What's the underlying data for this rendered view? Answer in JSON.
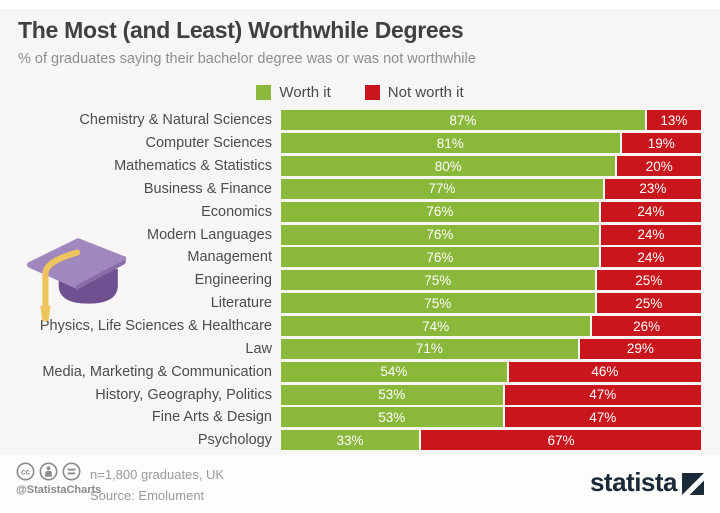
{
  "header": {
    "title": "The Most (and Least) Worthwhile Degrees",
    "subtitle": "% of graduates saying their bachelor degree was or was not worthwhile"
  },
  "chart_data": {
    "type": "bar",
    "orientation": "horizontal",
    "stacked": true,
    "value_suffix": "%",
    "xlim": [
      0,
      100
    ],
    "legend_position": "top-center",
    "categories": [
      "Chemistry & Natural Sciences",
      "Computer Sciences",
      "Mathematics & Statistics",
      "Business & Finance",
      "Economics",
      "Modern Languages",
      "Management",
      "Engineering",
      "Literature",
      "Physics, Life Sciences & Healthcare",
      "Law",
      "Media, Marketing & Communication",
      "History, Geography, Politics",
      "Fine Arts & Design",
      "Psychology"
    ],
    "series": [
      {
        "name": "Worth it",
        "color": "#8ab83a",
        "values": [
          87,
          81,
          80,
          77,
          76,
          76,
          76,
          75,
          75,
          74,
          71,
          54,
          53,
          53,
          33
        ]
      },
      {
        "name": "Not worth it",
        "color": "#c9161c",
        "values": [
          13,
          19,
          20,
          23,
          24,
          24,
          24,
          25,
          25,
          26,
          29,
          46,
          47,
          47,
          67
        ]
      }
    ]
  },
  "footer": {
    "license_icons": [
      "cc-icon",
      "attribution-icon",
      "equals-icon"
    ],
    "handle": "@StatistaCharts",
    "sample_note": "n=1,800 graduates, UK",
    "source_note": "Source: Emolument",
    "brand": "statista"
  },
  "colors": {
    "background": "#f7f6f4",
    "footer_background": "#fdfdfc",
    "title": "#404040",
    "subtitle": "#8f8e8c",
    "category_label": "#4c4c4b",
    "bar_value_text": "#ffffff",
    "worth_it_green": "#8ab83a",
    "not_worth_it_red": "#c9161c",
    "brand_navy": "#1b2a38",
    "cap_board_purple": "#a087bd",
    "cap_dome_purple": "#6f5191",
    "cap_tassel_gold": "#eec45e"
  }
}
